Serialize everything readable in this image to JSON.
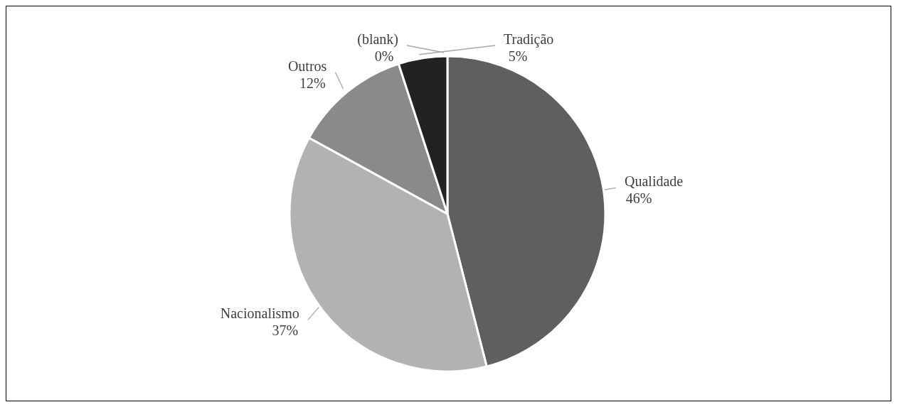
{
  "chart_data": {
    "type": "pie",
    "categories": [
      "Qualidade",
      "Nacionalismo",
      "Outros",
      "Tradição",
      "(blank)"
    ],
    "values": [
      46,
      37,
      12,
      5,
      0
    ],
    "value_labels": [
      "46%",
      "37%",
      "12%",
      "5%",
      "0%"
    ],
    "colors": [
      "#5f5f5f",
      "#b2b2b2",
      "#8a8a8a",
      "#222222",
      "#404040"
    ]
  }
}
